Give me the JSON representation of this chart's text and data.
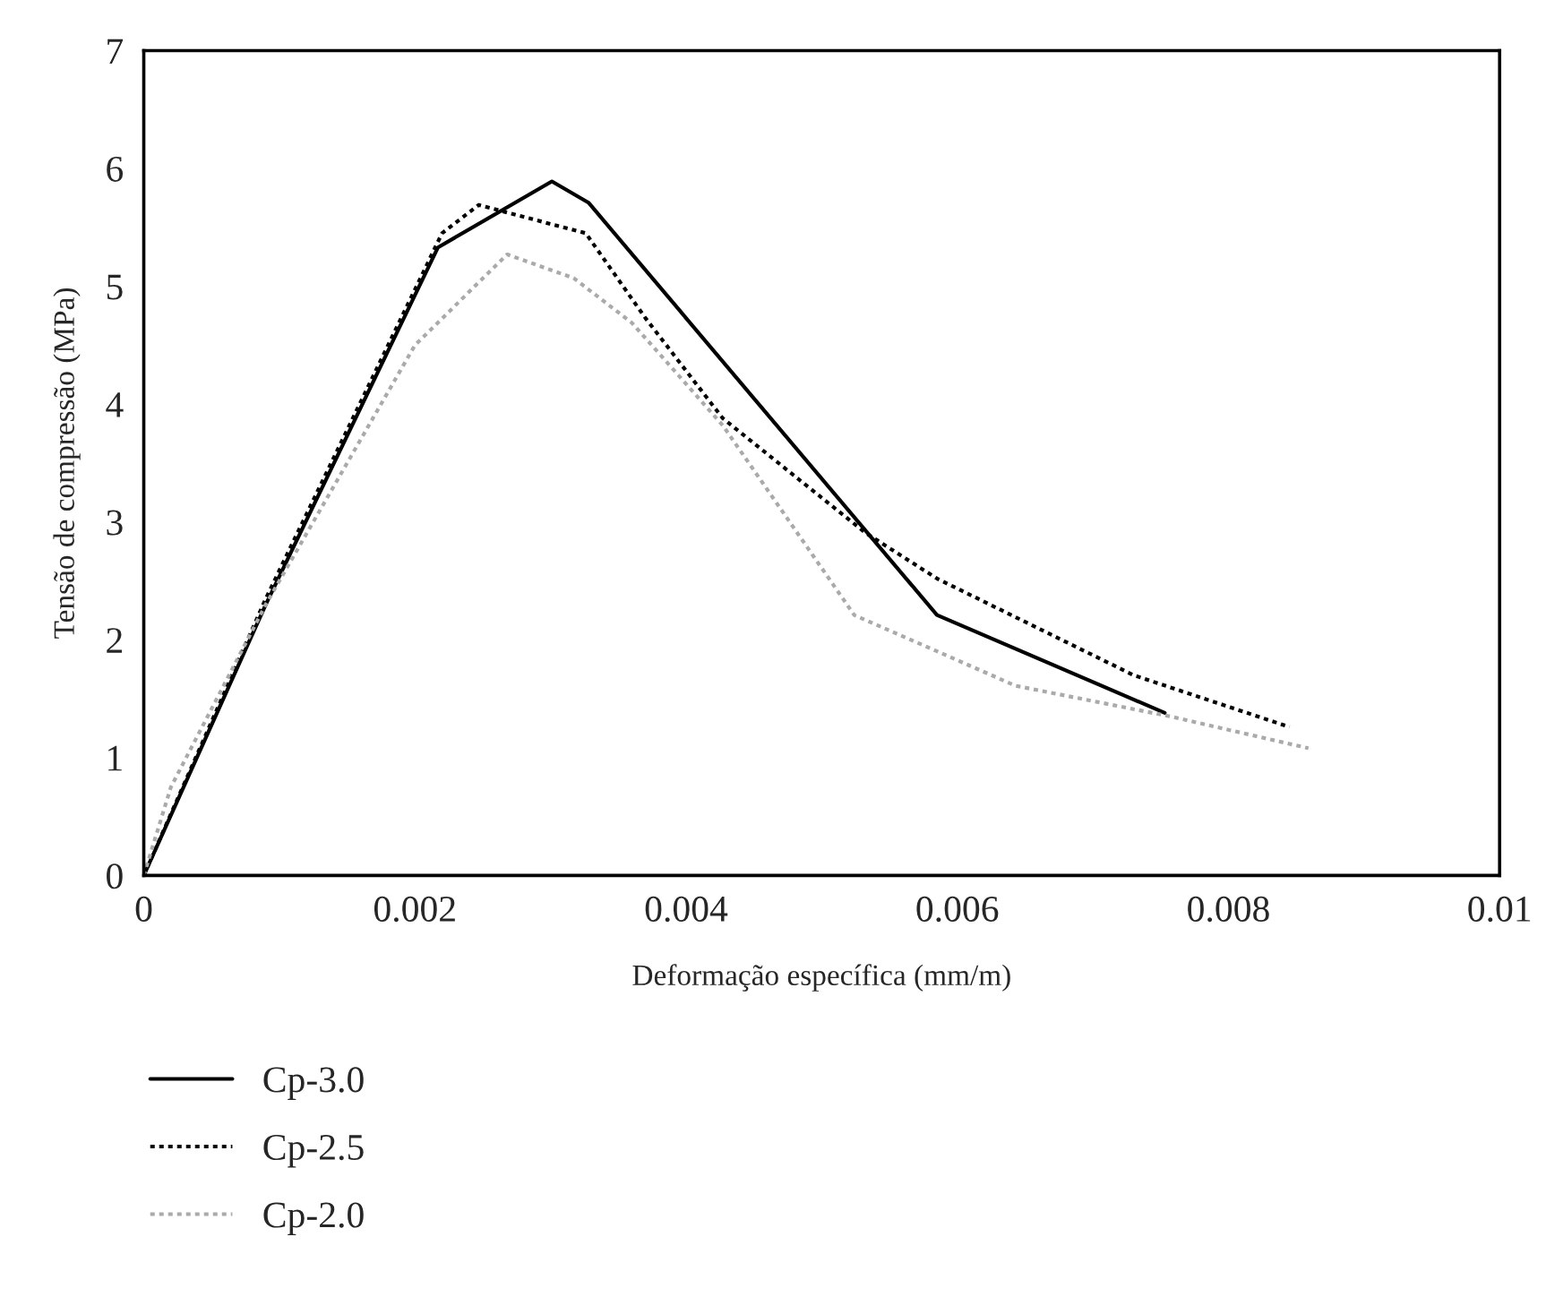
{
  "chart_data": {
    "type": "line",
    "xlabel": "Deformação específica (mm/m)",
    "ylabel": "Tensão de compressão (MPa)",
    "xlim": [
      0,
      0.01
    ],
    "xticks": [
      0,
      0.002,
      0.004,
      0.006,
      0.008,
      0.01
    ],
    "ylim": [
      0,
      7
    ],
    "yticks": [
      0,
      1,
      2,
      3,
      4,
      5,
      6,
      7
    ],
    "grid": false,
    "legend": "bottom left",
    "series": [
      {
        "name": "Cp-3.0",
        "color": "#000000",
        "line_style": "solid",
        "x": [
          0,
          0.0009,
          0.00217,
          0.00301,
          0.00328,
          0.00585,
          0.00753
        ],
        "values": [
          0,
          2.3,
          5.33,
          5.89,
          5.71,
          2.21,
          1.38
        ]
      },
      {
        "name": "Cp-2.5",
        "color": "#000000",
        "line_style": "dotted",
        "x": [
          0,
          0.0009,
          0.0022,
          0.00247,
          0.00326,
          0.0037,
          0.00427,
          0.00532,
          0.00585,
          0.0073,
          0.00845
        ],
        "values": [
          0,
          2.35,
          5.45,
          5.69,
          5.45,
          4.73,
          3.88,
          2.91,
          2.52,
          1.7,
          1.26
        ]
      },
      {
        "name": "Cp-2.0",
        "color": "#aaaaaa",
        "line_style": "dotted",
        "x": [
          0,
          0.0002,
          0.0009,
          0.002,
          0.00268,
          0.00317,
          0.0036,
          0.00427,
          0.00524,
          0.00643,
          0.00757,
          0.00859
        ],
        "values": [
          0,
          0.75,
          2.3,
          4.5,
          5.27,
          5.07,
          4.69,
          3.82,
          2.21,
          1.61,
          1.35,
          1.08
        ]
      }
    ]
  }
}
